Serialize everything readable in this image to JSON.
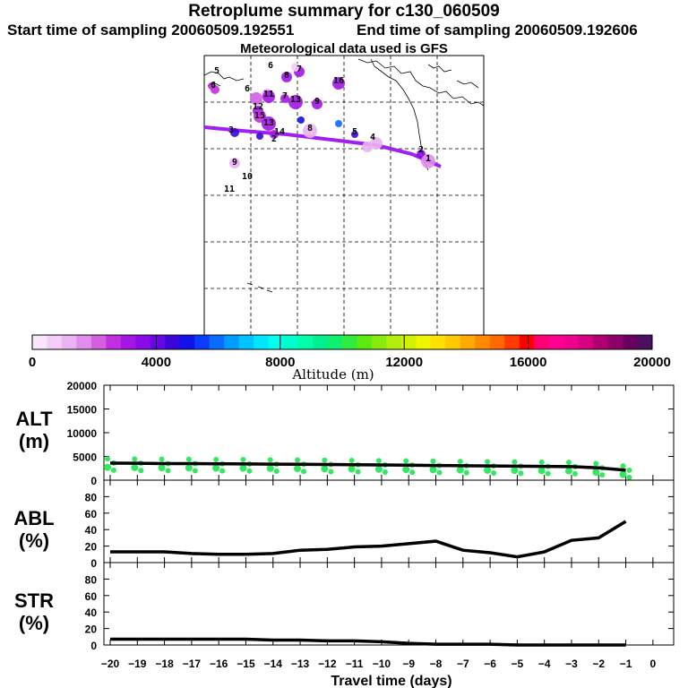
{
  "header": {
    "title": "Retroplume summary for c130_060509",
    "start": "Start time of sampling 20060509.192551",
    "end": "End time of sampling 20060509.192606",
    "met": "Meteorological data used is GFS"
  },
  "colorbar": {
    "label": "Altitude (m)",
    "ticks": [
      {
        "v": 0,
        "t": "0"
      },
      {
        "v": 4000,
        "t": "4000"
      },
      {
        "v": 8000,
        "t": "8000"
      },
      {
        "v": 12000,
        "t": "12000"
      },
      {
        "v": 16000,
        "t": "16000"
      },
      {
        "v": 20000,
        "t": "20000"
      }
    ],
    "colors": [
      "#f9e6fb",
      "#f3cdf6",
      "#eab3f2",
      "#e08eeb",
      "#d45fe3",
      "#c22fdf",
      "#a416e4",
      "#8a0ae8",
      "#6a06e4",
      "#3a06d8",
      "#1012e8",
      "#0a3cff",
      "#0a6cff",
      "#009cff",
      "#00c4ff",
      "#00e6ff",
      "#00ffee",
      "#00ffcc",
      "#00ffaa",
      "#00f090",
      "#10ef70",
      "#30ec40",
      "#5cea10",
      "#8aea10",
      "#b4ee10",
      "#d2f000",
      "#f0f500",
      "#ffe000",
      "#ffc800",
      "#ffaa00",
      "#ff8a00",
      "#ff6a00",
      "#ff3a00",
      "#ff0000",
      "#ff0070",
      "#ff0090",
      "#f00090",
      "#d40080",
      "#b00070",
      "#8c0068",
      "#6a0060",
      "#4a1060"
    ]
  },
  "map_labels": [
    {
      "t": "5"
    },
    {
      "t": "6"
    },
    {
      "t": "7"
    },
    {
      "t": "6"
    },
    {
      "t": "8"
    },
    {
      "t": "16"
    },
    {
      "t": "6"
    },
    {
      "t": "11"
    },
    {
      "t": "7"
    },
    {
      "t": "13"
    },
    {
      "t": "9"
    },
    {
      "t": "12"
    },
    {
      "t": "15"
    },
    {
      "t": "13"
    },
    {
      "t": "14"
    },
    {
      "t": "2"
    },
    {
      "t": "3"
    },
    {
      "t": "8"
    },
    {
      "t": "5"
    },
    {
      "t": "4"
    },
    {
      "t": "9"
    },
    {
      "t": "10"
    },
    {
      "t": "11"
    },
    {
      "t": "2"
    },
    {
      "t": "1"
    }
  ],
  "chart_data": [
    {
      "type": "line",
      "title": "ALT (m)",
      "label1": "ALT",
      "label2": "(m)",
      "x": [
        -20,
        -19,
        -18,
        -17,
        -16,
        -15,
        -14,
        -13,
        -12,
        -11,
        -10,
        -9,
        -8,
        -7,
        -6,
        -5,
        -4,
        -3,
        -2,
        -1
      ],
      "values": [
        3600,
        3550,
        3500,
        3480,
        3450,
        3430,
        3380,
        3340,
        3300,
        3260,
        3200,
        3150,
        3100,
        3050,
        3000,
        2950,
        2900,
        2850,
        2600,
        2100
      ],
      "ylim": [
        0,
        20000
      ],
      "yticks": [
        0,
        5000,
        10000,
        15000,
        20000
      ],
      "scatter_color": "#33e860"
    },
    {
      "type": "line",
      "title": "ABL (%)",
      "label1": "ABL",
      "label2": "(%)",
      "x": [
        -20,
        -19,
        -18,
        -17,
        -16,
        -15,
        -14,
        -13,
        -12,
        -11,
        -10,
        -9,
        -8,
        -7,
        -6,
        -5,
        -4,
        -3,
        -2,
        -1
      ],
      "values": [
        13,
        13,
        13,
        11,
        10,
        10,
        11,
        15,
        16,
        19,
        20,
        23,
        26,
        15,
        12,
        7,
        13,
        27,
        30,
        50
      ],
      "ylim": [
        0,
        100
      ],
      "yticks": [
        0,
        20,
        40,
        60,
        80
      ]
    },
    {
      "type": "line",
      "title": "STR (%)",
      "label1": "STR",
      "label2": "(%)",
      "x": [
        -20,
        -19,
        -18,
        -17,
        -16,
        -15,
        -14,
        -13,
        -12,
        -11,
        -10,
        -9,
        -8,
        -7,
        -6,
        -5,
        -4,
        -3,
        -2,
        -1
      ],
      "values": [
        7,
        7,
        7,
        7,
        7,
        7,
        6,
        6,
        5,
        5,
        4,
        2,
        1,
        1,
        1,
        0,
        0,
        0,
        0,
        0
      ],
      "ylim": [
        0,
        100
      ],
      "yticks": [
        0,
        20,
        40,
        60,
        80
      ]
    }
  ],
  "x_axis": {
    "label": "Travel time (days)",
    "ticks": [
      {
        "v": -20,
        "t": "−20"
      },
      {
        "v": -19,
        "t": "−19"
      },
      {
        "v": -18,
        "t": "−18"
      },
      {
        "v": -17,
        "t": "−17"
      },
      {
        "v": -16,
        "t": "−16"
      },
      {
        "v": -15,
        "t": "−15"
      },
      {
        "v": -14,
        "t": "−14"
      },
      {
        "v": -13,
        "t": "−13"
      },
      {
        "v": -12,
        "t": "−12"
      },
      {
        "v": -11,
        "t": "−11"
      },
      {
        "v": -10,
        "t": "−10"
      },
      {
        "v": -9,
        "t": "−9"
      },
      {
        "v": -8,
        "t": "−8"
      },
      {
        "v": -7,
        "t": "−7"
      },
      {
        "v": -6,
        "t": "−6"
      },
      {
        "v": -5,
        "t": "−5"
      },
      {
        "v": -4,
        "t": "−4"
      },
      {
        "v": -3,
        "t": "−3"
      },
      {
        "v": -2,
        "t": "−2"
      },
      {
        "v": -1,
        "t": "−1"
      },
      {
        "v": 0,
        "t": "0"
      }
    ]
  }
}
